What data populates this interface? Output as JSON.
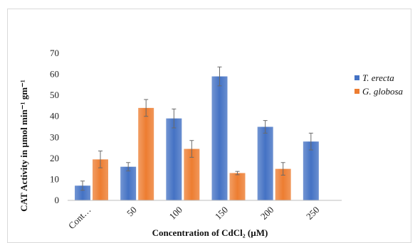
{
  "chart_data": {
    "type": "bar",
    "categories": [
      "Cont…",
      "50",
      "100",
      "150",
      "200",
      "250"
    ],
    "series": [
      {
        "name": "T. erecta",
        "color": "#4472c4",
        "values": [
          7,
          16,
          39,
          59,
          35,
          28
        ],
        "errors": [
          2.2,
          2,
          4.5,
          4.5,
          3,
          4
        ]
      },
      {
        "name": "G. globosa",
        "color": "#ed7d31",
        "values": [
          19.5,
          44,
          24.5,
          13,
          15,
          null
        ],
        "errors": [
          4,
          4,
          4,
          0.8,
          3,
          null
        ]
      }
    ],
    "ylim": [
      0,
      70
    ],
    "yticks": [
      0,
      10,
      20,
      30,
      40,
      50,
      60,
      70
    ],
    "ylabel": "CAT Activity in µmol min⁻¹ gm⁻¹",
    "xlabel": "Concentration of CdCl₂ (µM)",
    "legend_position": "right",
    "grid": false
  }
}
